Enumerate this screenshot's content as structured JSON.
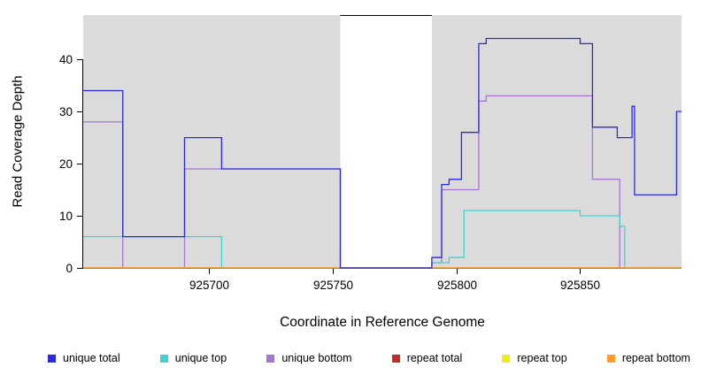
{
  "chart_data": {
    "type": "line",
    "step": "after",
    "title": "",
    "xlabel": "Coordinate in Reference Genome",
    "ylabel": "Read Coverage Depth",
    "xlim": [
      925649,
      925891
    ],
    "ylim": [
      0,
      48.5
    ],
    "x_ticks": [
      925700,
      925750,
      925800,
      925850
    ],
    "y_ticks": [
      0,
      10,
      20,
      30,
      40
    ],
    "grid": false,
    "legend_position": "bottom",
    "panel_background": "#DBDBDB",
    "gap_region": {
      "start": 925753,
      "end": 925790,
      "fill": "#FFFFFF"
    },
    "series": [
      {
        "name": "unique total",
        "color": "#2A2AD8",
        "points": [
          [
            925649,
            34
          ],
          [
            925665,
            6
          ],
          [
            925690,
            25
          ],
          [
            925705,
            19
          ],
          [
            925753,
            0
          ],
          [
            925790,
            2
          ],
          [
            925794,
            16
          ],
          [
            925797,
            17
          ],
          [
            925802,
            26
          ],
          [
            925809,
            43
          ],
          [
            925812,
            44
          ],
          [
            925850,
            43
          ],
          [
            925855,
            27
          ],
          [
            925865,
            25
          ],
          [
            925871,
            31
          ],
          [
            925872,
            14
          ],
          [
            925889,
            30
          ]
        ]
      },
      {
        "name": "unique top",
        "color": "#3ED3D3",
        "points": [
          [
            925649,
            6
          ],
          [
            925705,
            0
          ],
          [
            925790,
            1
          ],
          [
            925797,
            2
          ],
          [
            925803,
            11
          ],
          [
            925850,
            10
          ],
          [
            925866,
            8
          ],
          [
            925868,
            0
          ]
        ]
      },
      {
        "name": "unique bottom",
        "color": "#A775D3",
        "points": [
          [
            925649,
            28
          ],
          [
            925665,
            0
          ],
          [
            925690,
            19
          ],
          [
            925753,
            0
          ],
          [
            925790,
            1
          ],
          [
            925794,
            15
          ],
          [
            925809,
            32
          ],
          [
            925812,
            33
          ],
          [
            925855,
            17
          ],
          [
            925866,
            0
          ]
        ]
      },
      {
        "name": "repeat total",
        "color": "#C62B2B",
        "points": [
          [
            925649,
            0
          ]
        ]
      },
      {
        "name": "repeat top",
        "color": "#EDED1A",
        "points": [
          [
            925649,
            0
          ]
        ]
      },
      {
        "name": "repeat bottom",
        "color": "#FF9D2B",
        "points": [
          [
            925649,
            0
          ]
        ]
      }
    ],
    "draw_order": [
      "unique bottom",
      "unique top",
      "repeat total",
      "repeat top",
      "repeat bottom",
      "unique total"
    ]
  },
  "legend": {
    "items": [
      {
        "label": "unique total",
        "color": "#2A2AD8"
      },
      {
        "label": "unique top",
        "color": "#3ED3D3"
      },
      {
        "label": "unique bottom",
        "color": "#A775D3"
      },
      {
        "label": "repeat total",
        "color": "#C62B2B"
      },
      {
        "label": "repeat top",
        "color": "#EDED1A"
      },
      {
        "label": "repeat bottom",
        "color": "#FF9D2B"
      }
    ]
  }
}
